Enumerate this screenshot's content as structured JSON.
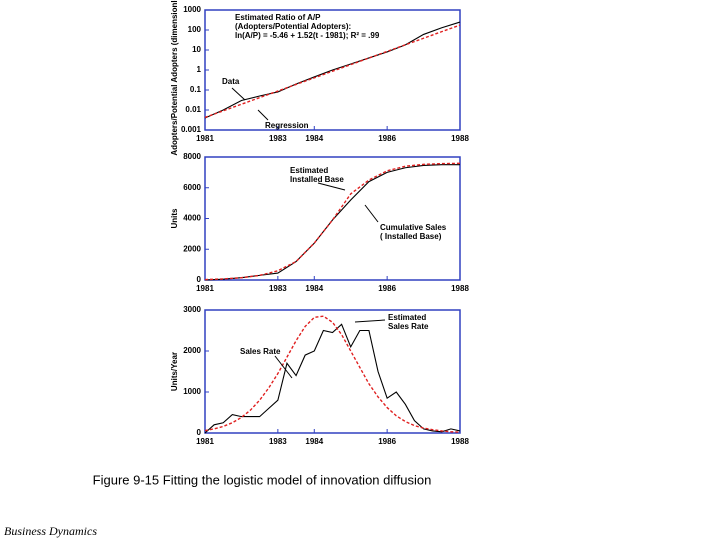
{
  "chart_data": [
    {
      "type": "line",
      "log_y": true,
      "ylabel": "Adopters/Potential Adopters (dimensionless)",
      "x": [
        1981,
        1981.5,
        1982,
        1982.5,
        1983,
        1983.5,
        1984,
        1984.5,
        1985,
        1985.5,
        1986,
        1986.5,
        1987,
        1987.5,
        1988
      ],
      "xlim": [
        1981,
        1988
      ],
      "xticks": [
        1981,
        1983,
        1984,
        1986,
        1988
      ],
      "ylim": [
        0.001,
        1000
      ],
      "yticks": [
        1000,
        100,
        10,
        1,
        0.1,
        0.01,
        0.001
      ],
      "series": [
        {
          "name": "Data",
          "color": "#000000",
          "values": [
            0.004,
            0.01,
            0.03,
            0.05,
            0.08,
            0.2,
            0.45,
            1,
            2,
            4,
            8,
            18,
            60,
            130,
            250
          ]
        },
        {
          "name": "Regression",
          "color": "#e02020",
          "dashed": true,
          "values": [
            0.00425,
            0.0091,
            0.0194,
            0.0416,
            0.0887,
            0.19,
            0.405,
            0.87,
            1.85,
            3.97,
            8.5,
            18.2,
            38.6,
            83,
            176
          ]
        }
      ],
      "annotations": [
        [
          "Estimated Ratio of A/P",
          "(Adopters/Potential Adopters):",
          "ln(A/P) = -5.46 + 1.52(t - 1981); R² = .99"
        ],
        [
          "Data"
        ],
        [
          "Regression"
        ]
      ]
    },
    {
      "type": "line",
      "ylabel": "Units",
      "x": [
        1981,
        1981.5,
        1982,
        1982.5,
        1983,
        1983.5,
        1984,
        1984.5,
        1985,
        1985.5,
        1986,
        1986.5,
        1987,
        1987.5,
        1988
      ],
      "xlim": [
        1981,
        1988
      ],
      "xticks": [
        1981,
        1983,
        1984,
        1986,
        1988
      ],
      "ylim": [
        0,
        8000
      ],
      "yticks": [
        0,
        2000,
        4000,
        6000,
        8000
      ],
      "series": [
        {
          "name": "Cumulative Sales",
          "color": "#000000",
          "values": [
            0,
            50,
            150,
            300,
            450,
            1200,
            2400,
            3900,
            5200,
            6400,
            7000,
            7300,
            7450,
            7500,
            7500
          ]
        },
        {
          "name": "Estimated Installed Base",
          "color": "#e02020",
          "dashed": true,
          "values": [
            30,
            70,
            150,
            300,
            600,
            1200,
            2400,
            3900,
            5600,
            6500,
            7100,
            7400,
            7520,
            7570,
            7590
          ]
        }
      ],
      "annotations": [
        [
          "Estimated",
          "Installed Base"
        ],
        [
          "Cumulative Sales",
          "( Installed Base)"
        ]
      ]
    },
    {
      "type": "line",
      "ylabel": "Units/Year",
      "x": [
        1981,
        1981.25,
        1981.5,
        1981.75,
        1982,
        1982.25,
        1982.5,
        1982.75,
        1983,
        1983.25,
        1983.5,
        1983.75,
        1984,
        1984.25,
        1984.5,
        1984.75,
        1985,
        1985.25,
        1985.5,
        1985.75,
        1986,
        1986.25,
        1986.5,
        1986.75,
        1987,
        1987.25,
        1987.5,
        1987.75,
        1988
      ],
      "xlim": [
        1981,
        1988
      ],
      "xticks": [
        1981,
        1983,
        1984,
        1986,
        1988
      ],
      "ylim": [
        0,
        3000
      ],
      "yticks": [
        0,
        1000,
        2000,
        3000
      ],
      "series": [
        {
          "name": "Sales Rate",
          "color": "#000000",
          "values": [
            0,
            200,
            250,
            450,
            400,
            400,
            400,
            600,
            800,
            1700,
            1400,
            1900,
            2000,
            2500,
            2450,
            2650,
            2100,
            2500,
            2500,
            1500,
            850,
            1000,
            700,
            300,
            100,
            50,
            30,
            100,
            50
          ]
        },
        {
          "name": "Estimated Sales Rate",
          "color": "#e02020",
          "dashed": true,
          "values": [
            60,
            100,
            160,
            250,
            380,
            560,
            800,
            1100,
            1450,
            1850,
            2250,
            2600,
            2820,
            2850,
            2700,
            2400,
            2000,
            1600,
            1200,
            880,
            620,
            420,
            280,
            180,
            120,
            80,
            50,
            30,
            20
          ]
        }
      ],
      "annotations": [
        [
          "Estimated",
          "Sales Rate"
        ],
        [
          "Sales Rate"
        ]
      ]
    }
  ],
  "caption": "Figure 9-15  Fitting the logistic model of innovation diffusion",
  "footer": "Business Dynamics"
}
